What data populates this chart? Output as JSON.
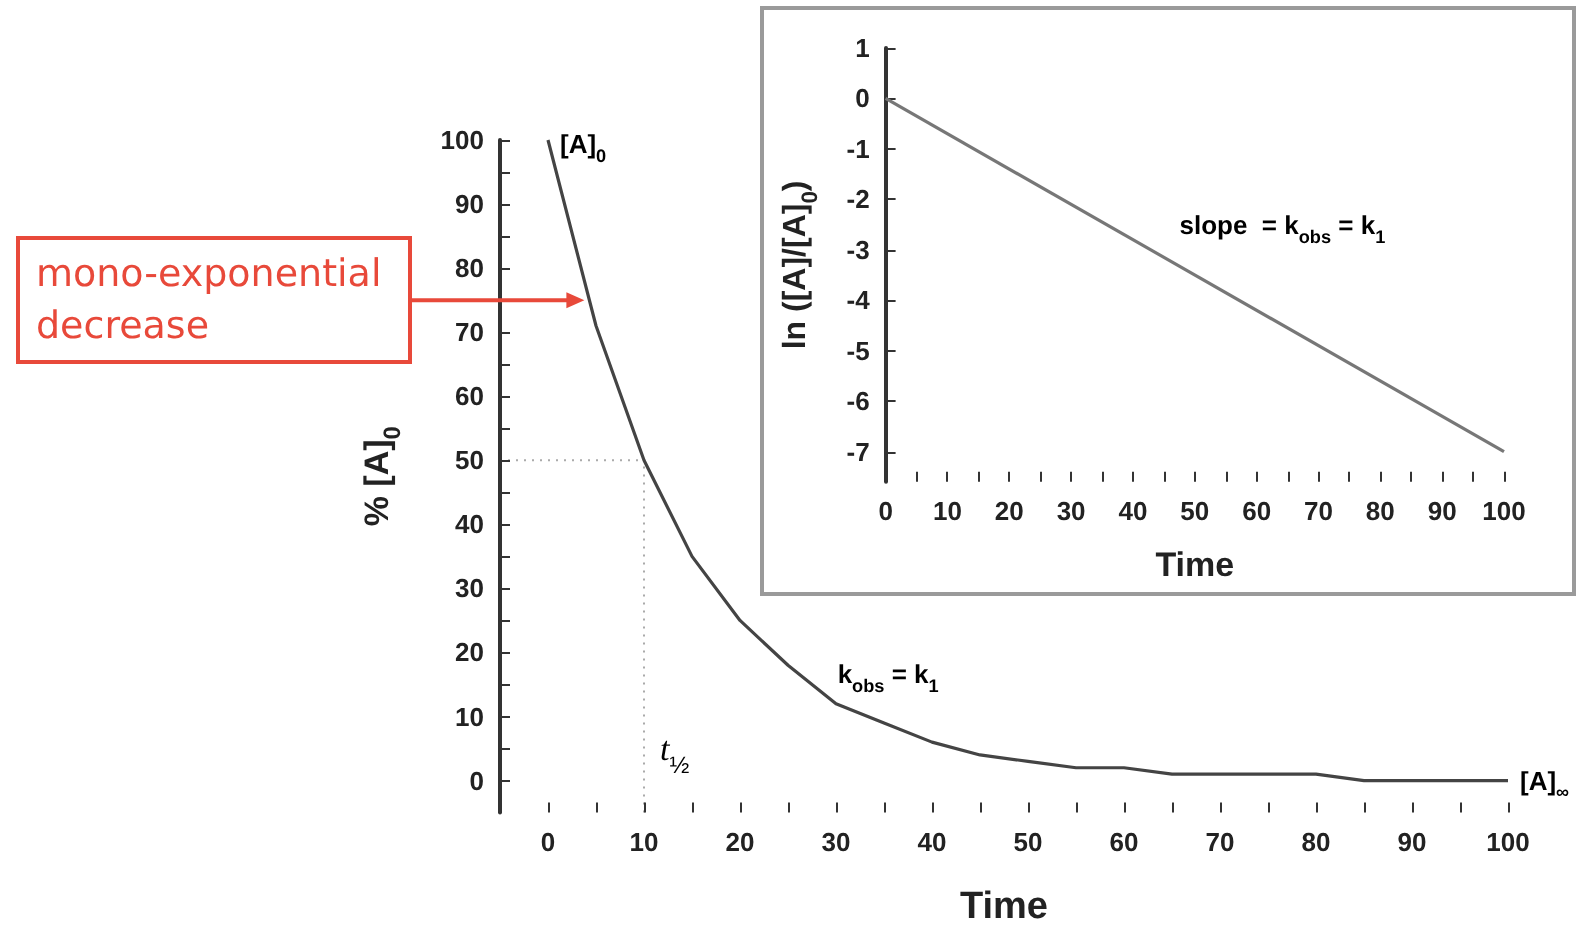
{
  "chart_data": [
    {
      "type": "line",
      "xlabel": "Time",
      "ylabel": "% [A]$_{0}$",
      "x": [
        0,
        5,
        10,
        15,
        20,
        25,
        30,
        35,
        40,
        45,
        50,
        55,
        60,
        65,
        70,
        75,
        80,
        85,
        90,
        95,
        100
      ],
      "series": [
        {
          "color": "#444444",
          "values": [
            100,
            71,
            50,
            35,
            25,
            18,
            12,
            9,
            6,
            4,
            3,
            2,
            2,
            1,
            1,
            1,
            1,
            0,
            0,
            0,
            0
          ]
        }
      ],
      "xlim": [
        -5,
        100
      ],
      "ylim": [
        -5,
        100
      ],
      "xticks": [
        0,
        {
          "value": 5,
          "label": null
        },
        10,
        {
          "value": 15,
          "label": null
        },
        20,
        {
          "value": 25,
          "label": null
        },
        30,
        {
          "value": 35,
          "label": null
        },
        40,
        {
          "value": 45,
          "label": null
        },
        50,
        {
          "value": 55,
          "label": null
        },
        60,
        {
          "value": 65,
          "label": null
        },
        70,
        {
          "value": 75,
          "label": null
        },
        80,
        {
          "value": 85,
          "label": null
        },
        90,
        {
          "value": 95,
          "label": null
        },
        100
      ],
      "yticks": [
        0,
        {
          "value": 5,
          "label": null
        },
        10,
        {
          "value": 15,
          "label": null
        },
        20,
        {
          "value": 25,
          "label": null
        },
        30,
        {
          "value": 35,
          "label": null
        },
        40,
        {
          "value": 45,
          "label": null
        },
        50,
        {
          "value": 55,
          "label": null
        },
        60,
        {
          "value": 65,
          "label": null
        },
        70,
        {
          "value": 75,
          "label": null
        },
        80,
        {
          "value": 85,
          "label": null
        },
        90,
        {
          "value": 95,
          "label": null
        },
        100
      ],
      "ref_lines": [
        {
          "axis": "y",
          "value": 50,
          "color": "#aaaaaa",
          "line_style": "dotted"
        },
        {
          "axis": "x",
          "value": 10,
          "label": "t$_{½}$",
          "color": "#aaaaaa",
          "line_style": "dotted"
        }
      ],
      "annotations": [
        {
          "text": "[A]$_{0}$",
          "x": 0,
          "y": 100
        },
        {
          "text": "[A]$_{∞}$",
          "x": 100,
          "y": 0
        },
        "k$_{obs}$ = k$_{1}$",
        {
          "text": "mono-exponential decrease",
          "x": 4,
          "y": 75
        }
      ],
      "marker": "none",
      "line_style": "solid"
    },
    {
      "type": "line",
      "xlabel": "Time",
      "ylabel": "ln ([A]/[A]$_{0}$)",
      "x": [
        0,
        100
      ],
      "series": [
        {
          "color": "#777777",
          "values": [
            0,
            -7
          ]
        }
      ],
      "xlim": [
        0,
        100
      ],
      "ylim": [
        -7.6,
        1
      ],
      "xticks": [
        0,
        {
          "value": 5,
          "label": null
        },
        10,
        {
          "value": 15,
          "label": null
        },
        20,
        {
          "value": 25,
          "label": null
        },
        30,
        {
          "value": 35,
          "label": null
        },
        40,
        {
          "value": 45,
          "label": null
        },
        50,
        {
          "value": 55,
          "label": null
        },
        60,
        {
          "value": 65,
          "label": null
        },
        70,
        {
          "value": 75,
          "label": null
        },
        80,
        {
          "value": 85,
          "label": null
        },
        90,
        {
          "value": 95,
          "label": null
        },
        100
      ],
      "yticks": [
        -7,
        -6,
        -5,
        -4,
        -3,
        -2,
        -1,
        0,
        1
      ],
      "annotations": [
        "slope  = k$_{obs}$ = k$_{1}$"
      ],
      "marker": "none",
      "line_style": "solid"
    }
  ]
}
